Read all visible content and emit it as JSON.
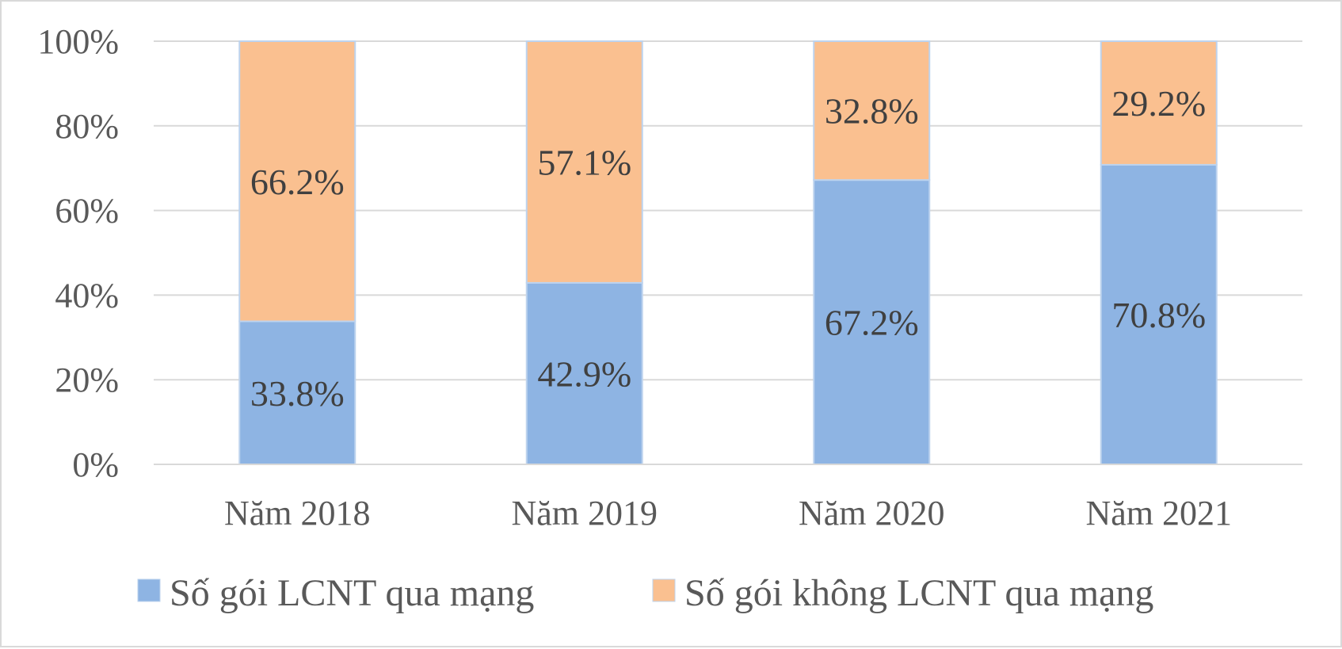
{
  "chart_data": {
    "type": "bar",
    "stacked": true,
    "percent_stacked": true,
    "categories": [
      "Năm 2018",
      "Năm 2019",
      "Năm 2020",
      "Năm 2021"
    ],
    "series": [
      {
        "name": "Số gói LCNT qua mạng",
        "values": [
          33.8,
          42.9,
          67.2,
          70.8
        ],
        "labels": [
          "33.8%",
          "42.9%",
          "67.2%",
          "70.8%"
        ],
        "color": "#8eb4e3"
      },
      {
        "name": "Số gói không LCNT qua mạng",
        "values": [
          66.2,
          57.1,
          32.8,
          29.2
        ],
        "labels": [
          "66.2%",
          "57.1%",
          "32.8%",
          "29.2%"
        ],
        "color": "#fac090"
      }
    ],
    "ylim": [
      0,
      100
    ],
    "yticks": [
      0,
      20,
      40,
      60,
      80,
      100
    ],
    "ytick_labels": [
      "0%",
      "20%",
      "40%",
      "60%",
      "80%",
      "100%"
    ],
    "grid": true,
    "legend_position": "bottom"
  }
}
